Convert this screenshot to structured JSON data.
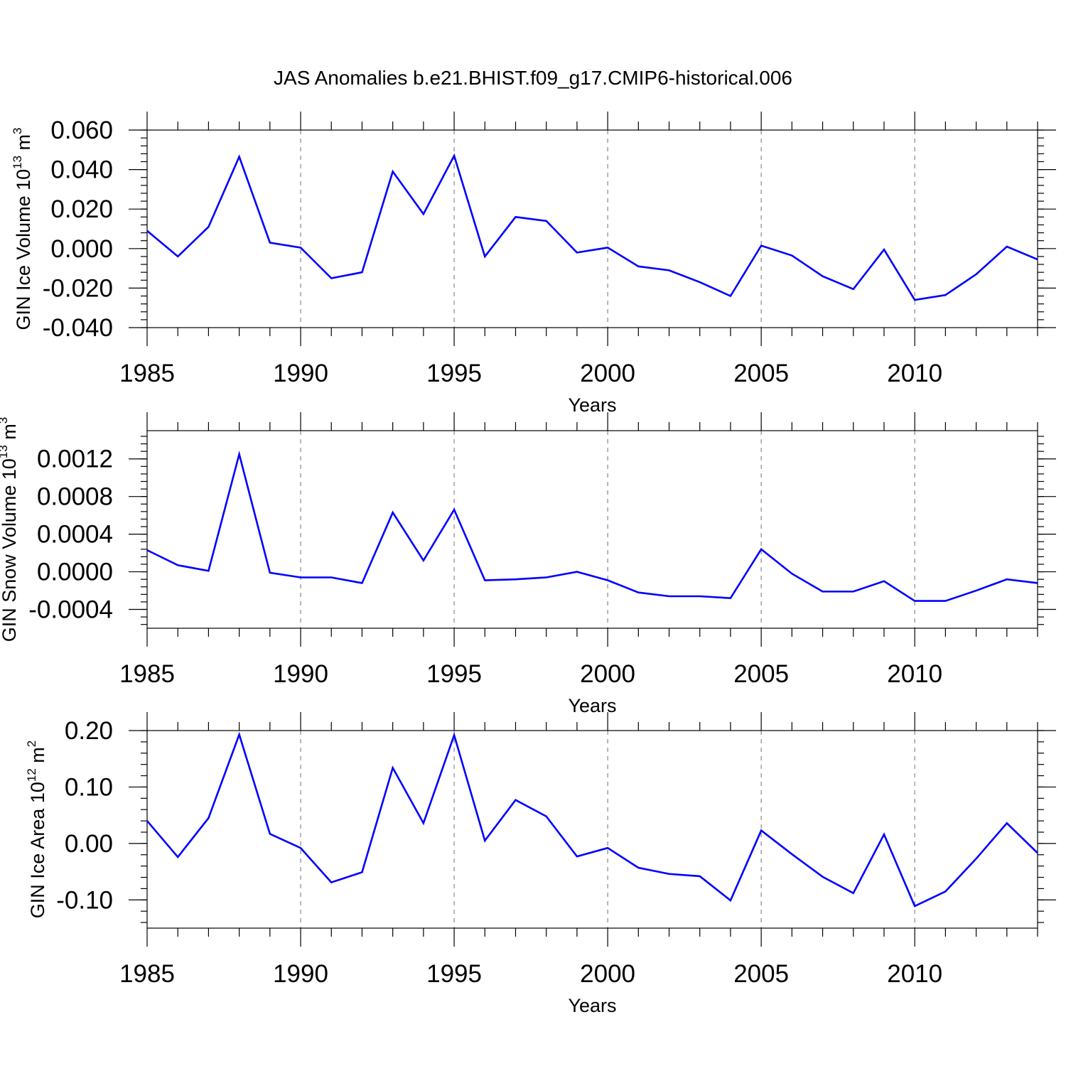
{
  "figure_title": "JAS Anomalies b.e21.BHIST.f09_g17.CMIP6-historical.006",
  "colors": {
    "series": "#0000ff",
    "grid": "#888888",
    "axes": "#000000"
  },
  "chart_data": [
    {
      "type": "line",
      "title": "",
      "xlabel": "Years",
      "ylabel": "GIN Ice Volume 10",
      "ylabel_exponent": "13",
      "ylabel_unit": "m",
      "ylabel_unit_exponent": "3",
      "xlim": [
        1985,
        2014
      ],
      "ylim": [
        -0.04,
        0.06
      ],
      "xticks": [
        "1985",
        "1990",
        "1995",
        "2000",
        "2005",
        "2010"
      ],
      "yticks": [
        "0.060",
        "0.040",
        "0.020",
        "0.000",
        "-0.020",
        "-0.040"
      ],
      "ytick_values": [
        0.06,
        0.04,
        0.02,
        0.0,
        -0.02,
        -0.04
      ],
      "grid": "dashed vertical lines at 1990, 1995, 2000, 2005, 2010",
      "x": [
        1985,
        1986,
        1987,
        1988,
        1989,
        1990,
        1991,
        1992,
        1993,
        1994,
        1995,
        1996,
        1997,
        1998,
        1999,
        2000,
        2001,
        2002,
        2003,
        2004,
        2005,
        2006,
        2007,
        2008,
        2009,
        2010,
        2011,
        2012,
        2013,
        2014
      ],
      "series": [
        {
          "values": [
            0.009,
            -0.004,
            0.011,
            0.0465,
            0.003,
            0.0005,
            -0.015,
            -0.012,
            0.039,
            0.0175,
            0.047,
            -0.004,
            0.016,
            0.014,
            -0.002,
            0.0005,
            -0.009,
            -0.011,
            -0.017,
            -0.024,
            0.0015,
            -0.0035,
            -0.014,
            -0.0205,
            -0.0005,
            -0.026,
            -0.0235,
            -0.013,
            0.001,
            -0.0055
          ]
        }
      ]
    },
    {
      "type": "line",
      "title": "",
      "xlabel": "Years",
      "ylabel": "GIN Snow Volume 10",
      "ylabel_exponent": "13",
      "ylabel_unit": "m",
      "ylabel_unit_exponent": "3",
      "xlim": [
        1985,
        2014
      ],
      "ylim": [
        -0.0006,
        0.0015
      ],
      "xticks": [
        "1985",
        "1990",
        "1995",
        "2000",
        "2005",
        "2010"
      ],
      "yticks": [
        "0.0012",
        "0.0008",
        "0.0004",
        "0.0000",
        "-0.0004"
      ],
      "ytick_values": [
        0.0012,
        0.0008,
        0.0004,
        0.0,
        -0.0004
      ],
      "grid": "dashed vertical lines at 1990, 1995, 2000, 2005, 2010",
      "x": [
        1985,
        1986,
        1987,
        1988,
        1989,
        1990,
        1991,
        1992,
        1993,
        1994,
        1995,
        1996,
        1997,
        1998,
        1999,
        2000,
        2001,
        2002,
        2003,
        2004,
        2005,
        2006,
        2007,
        2008,
        2009,
        2010,
        2011,
        2012,
        2013,
        2014
      ],
      "series": [
        {
          "values": [
            0.00023,
            7e-05,
            1e-05,
            0.00125,
            -1e-05,
            -6e-05,
            -6e-05,
            -0.00012,
            0.00063,
            0.00012,
            0.00066,
            -9e-05,
            -8e-05,
            -6e-05,
            0.0,
            -9e-05,
            -0.00022,
            -0.00026,
            -0.00026,
            -0.00028,
            0.00024,
            -2e-05,
            -0.00021,
            -0.00021,
            -0.0001,
            -0.00031,
            -0.00031,
            -0.0002,
            -8e-05,
            -0.00012
          ]
        }
      ]
    },
    {
      "type": "line",
      "title": "",
      "xlabel": "Years",
      "ylabel": "GIN Ice Area 10",
      "ylabel_exponent": "12",
      "ylabel_unit": "m",
      "ylabel_unit_exponent": "2",
      "xlim": [
        1985,
        2014
      ],
      "ylim": [
        -0.15,
        0.2
      ],
      "xticks": [
        "1985",
        "1990",
        "1995",
        "2000",
        "2005",
        "2010"
      ],
      "yticks": [
        "0.20",
        "0.10",
        "0.00",
        "-0.10"
      ],
      "ytick_values": [
        0.2,
        0.1,
        0.0,
        -0.1
      ],
      "grid": "dashed vertical lines at 1990, 1995, 2000, 2005, 2010",
      "x": [
        1985,
        1986,
        1987,
        1988,
        1989,
        1990,
        1991,
        1992,
        1993,
        1994,
        1995,
        1996,
        1997,
        1998,
        1999,
        2000,
        2001,
        2002,
        2003,
        2004,
        2005,
        2006,
        2007,
        2008,
        2009,
        2010,
        2011,
        2012,
        2013,
        2014
      ],
      "series": [
        {
          "values": [
            0.04,
            -0.024,
            0.045,
            0.193,
            0.017,
            -0.008,
            -0.069,
            -0.051,
            0.134,
            0.036,
            0.192,
            0.005,
            0.077,
            0.048,
            -0.023,
            -0.008,
            -0.043,
            -0.054,
            -0.058,
            -0.101,
            0.023,
            -0.019,
            -0.059,
            -0.088,
            0.016,
            -0.111,
            -0.085,
            -0.027,
            0.036,
            -0.017
          ]
        }
      ]
    }
  ]
}
